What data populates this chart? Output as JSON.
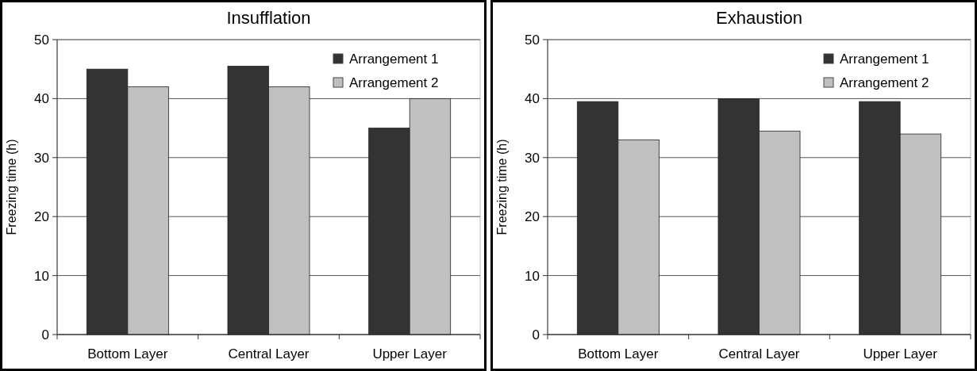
{
  "chart_data": [
    {
      "type": "bar",
      "title": "Insufflation",
      "ylabel": "Freezing time (h)",
      "categories": [
        "Bottom Layer",
        "Central Layer",
        "Upper Layer"
      ],
      "series": [
        {
          "name": "Arrangement 1",
          "color": "#333333",
          "values": [
            45,
            45.5,
            35
          ]
        },
        {
          "name": "Arrangement 2",
          "color": "#c0c0c0",
          "values": [
            42,
            42,
            40
          ]
        }
      ],
      "ylim": [
        0,
        50
      ],
      "yticks": [
        0,
        10,
        20,
        30,
        40,
        50
      ],
      "grid": "y",
      "legend": "top right"
    },
    {
      "type": "bar",
      "title": "Exhaustion",
      "ylabel": "Freezing time (h)",
      "categories": [
        "Bottom Layer",
        "Central Layer",
        "Upper Layer"
      ],
      "series": [
        {
          "name": "Arrangement 1",
          "color": "#333333",
          "values": [
            39.5,
            40,
            39.5
          ]
        },
        {
          "name": "Arrangement 2",
          "color": "#c0c0c0",
          "values": [
            33,
            34.5,
            34
          ]
        }
      ],
      "ylim": [
        0,
        50
      ],
      "yticks": [
        0,
        10,
        20,
        30,
        40,
        50
      ],
      "grid": "y",
      "legend": "top right"
    }
  ]
}
